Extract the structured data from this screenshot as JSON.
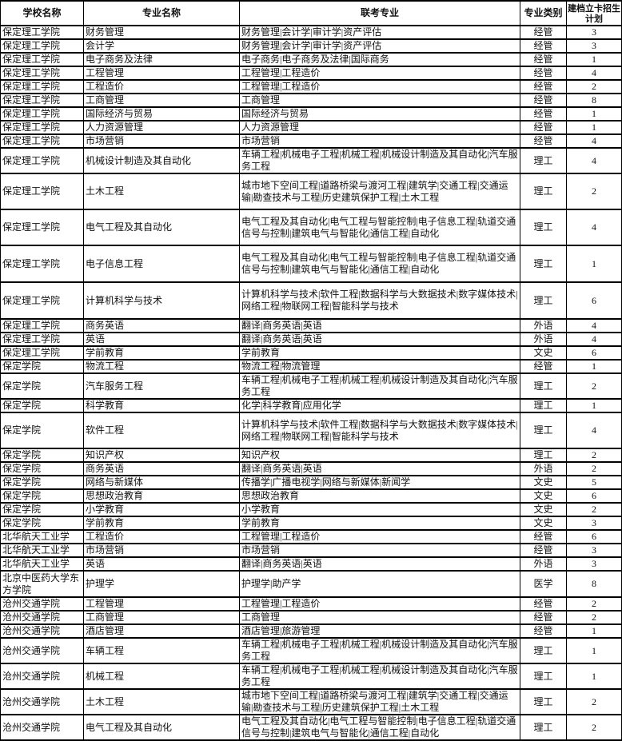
{
  "headers": [
    "学校名称",
    "专业名称",
    "联考专业",
    "专业类别",
    "建档立卡招生计划"
  ],
  "rows": [
    [
      "保定理工学院",
      "财务管理",
      "财务管理|会计学|审计学|资产评估",
      "经管",
      "3"
    ],
    [
      "保定理工学院",
      "会计学",
      "财务管理|会计学|审计学|资产评估",
      "经管",
      "3"
    ],
    [
      "保定理工学院",
      "电子商务及法律",
      "电子商务|电子商务及法律|国际商务",
      "经管",
      "1"
    ],
    [
      "保定理工学院",
      "工程管理",
      "工程管理|工程造价",
      "经管",
      "4"
    ],
    [
      "保定理工学院",
      "工程造价",
      "工程管理|工程造价",
      "经管",
      "2"
    ],
    [
      "保定理工学院",
      "工商管理",
      "工商管理",
      "经管",
      "8"
    ],
    [
      "保定理工学院",
      "国际经济与贸易",
      "国际经济与贸易",
      "经管",
      "1"
    ],
    [
      "保定理工学院",
      "人力资源管理",
      "人力资源管理",
      "经管",
      "1"
    ],
    [
      "保定理工学院",
      "市场营销",
      "市场营销",
      "经管",
      "4"
    ],
    [
      "保定理工学院",
      "机械设计制造及其自动化",
      "车辆工程|机械电子工程|机械工程|机械设计制造及其自动化|汽车服务工程",
      "理工",
      "4"
    ],
    [
      "保定理工学院",
      "土木工程",
      "城市地下空间工程|道路桥梁与渡河工程|建筑学|交通工程|交通运输|勘查技术与工程|历史建筑保护工程|土木工程",
      "理工",
      "2"
    ],
    [
      "保定理工学院",
      "电气工程及其自动化",
      "电气工程及其自动化|电气工程与智能控制|电子信息工程|轨道交通信号与控制|建筑电气与智能化|通信工程|自动化",
      "理工",
      "4"
    ],
    [
      "保定理工学院",
      "电子信息工程",
      "电气工程及其自动化|电气工程与智能控制|电子信息工程|轨道交通信号与控制|建筑电气与智能化|通信工程|自动化",
      "理工",
      "1"
    ],
    [
      "保定理工学院",
      "计算机科学与技术",
      "计算机科学与技术|软件工程|数据科学与大数据技术|数字媒体技术|网络工程|物联网工程|智能科学与技术",
      "理工",
      "6"
    ],
    [
      "保定理工学院",
      "商务英语",
      "翻译|商务英语|英语",
      "外语",
      "4"
    ],
    [
      "保定理工学院",
      "英语",
      "翻译|商务英语|英语",
      "外语",
      "4"
    ],
    [
      "保定理工学院",
      "学前教育",
      "学前教育",
      "文史",
      "6"
    ],
    [
      "保定学院",
      "物流工程",
      "物流工程|物流管理",
      "经管",
      "1"
    ],
    [
      "保定学院",
      "汽车服务工程",
      "车辆工程|机械电子工程|机械工程|机械设计制造及其自动化|汽车服务工程",
      "理工",
      "2"
    ],
    [
      "保定学院",
      "科学教育",
      "化学|科学教育|应用化学",
      "理工",
      "1"
    ],
    [
      "保定学院",
      "软件工程",
      "计算机科学与技术|软件工程|数据科学与大数据技术|数字媒体技术|网络工程|物联网工程|智能科学与技术",
      "理工",
      "4"
    ],
    [
      "保定学院",
      "知识产权",
      "知识产权",
      "理工",
      "2"
    ],
    [
      "保定学院",
      "商务英语",
      "翻译|商务英语|英语",
      "外语",
      "2"
    ],
    [
      "保定学院",
      "网络与新媒体",
      "传播学|广播电视学|网络与新媒体|新闻学",
      "文史",
      "5"
    ],
    [
      "保定学院",
      "思想政治教育",
      "思想政治教育",
      "文史",
      "6"
    ],
    [
      "保定学院",
      "小学教育",
      "小学教育",
      "文史",
      "2"
    ],
    [
      "保定学院",
      "学前教育",
      "学前教育",
      "文史",
      "3"
    ],
    [
      "北华航天工业学",
      "工程造价",
      "工程管理|工程造价",
      "经管",
      "6"
    ],
    [
      "北华航天工业学",
      "市场营销",
      "市场营销",
      "经管",
      "3"
    ],
    [
      "北华航天工业学",
      "英语",
      "翻译|商务英语|英语",
      "外语",
      "3"
    ],
    [
      "北京中医药大学东方学院",
      "护理学",
      "护理学|助产学",
      "医学",
      "8"
    ],
    [
      "沧州交通学院",
      "工程管理",
      "工程管理|工程造价",
      "经管",
      "2"
    ],
    [
      "沧州交通学院",
      "工商管理",
      "工商管理",
      "经管",
      "2"
    ],
    [
      "沧州交通学院",
      "酒店管理",
      "酒店管理|旅游管理",
      "经管",
      "1"
    ],
    [
      "沧州交通学院",
      "车辆工程",
      "车辆工程|机械电子工程|机械工程|机械设计制造及其自动化|汽车服务工程",
      "理工",
      "1"
    ],
    [
      "沧州交通学院",
      "机械工程",
      "车辆工程|机械电子工程|机械工程|机械设计制造及其自动化|汽车服务工程",
      "理工",
      "1"
    ],
    [
      "沧州交通学院",
      "土木工程",
      "城市地下空间工程|道路桥梁与渡河工程|建筑学|交通工程|交通运输|勘查技术与工程|历史建筑保护工程|土木工程",
      "理工",
      "2"
    ],
    [
      "沧州交通学院",
      "电气工程及其自动化",
      "电气工程及其自动化|电气工程与智能控制|电子信息工程|轨道交通信号与控制|建筑电气与智能化|通信工程|自动化",
      "理工",
      "2"
    ]
  ]
}
